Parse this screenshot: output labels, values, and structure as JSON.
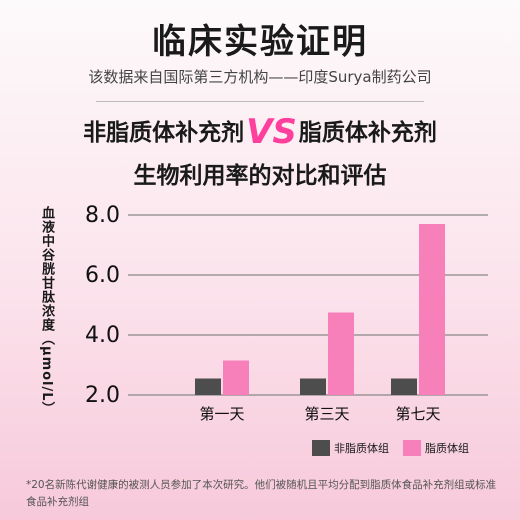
{
  "header": {
    "title": "临床实验证明",
    "subtitle": "该数据来自国际第三方机构——印度Surya制药公司",
    "comparison_left": "非脂质体补充剂",
    "comparison_vs": "VS",
    "comparison_right": "脂质体补充剂",
    "comparison_line2": "生物利用率的对比和评估"
  },
  "footnote": "*20名新陈代谢健康的被测人员参加了本次研究。他们被随机且平均分配到脂质体食品补充剂组或标准食品补充剂组",
  "colors": {
    "non_liposomal": "#4d4d4d",
    "liposomal": "#f77fba",
    "accent": "#ff3f9e"
  },
  "chart_data": {
    "type": "bar",
    "ylabel": "血液中谷胱甘肽浓度（μmol/L）",
    "xlabel": "",
    "categories": [
      "第一天",
      "第三天",
      "第七天"
    ],
    "series": [
      {
        "name": "非脂质体组",
        "values": [
          2.55,
          2.55,
          2.55
        ]
      },
      {
        "name": "脂质体组",
        "values": [
          3.15,
          4.75,
          7.7
        ]
      }
    ],
    "yticks": [
      "2.0",
      "4.0",
      "6.0",
      "8.0"
    ],
    "ylim": [
      2.0,
      8.0
    ],
    "grid": true,
    "legend_position": "bottom-right"
  }
}
